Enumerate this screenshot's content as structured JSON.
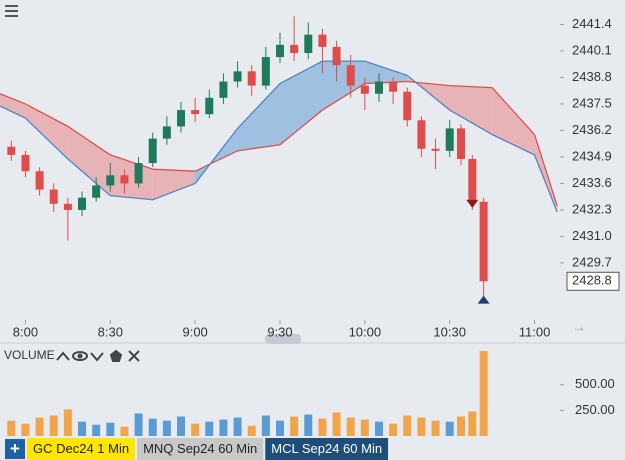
{
  "chart_data": {
    "type": "candlestick",
    "xlim": [
      471,
      669
    ],
    "xticks": [
      {
        "value": 480,
        "label": "8:00"
      },
      {
        "value": 510,
        "label": "8:30"
      },
      {
        "value": 540,
        "label": "9:00"
      },
      {
        "value": 570,
        "label": "9:30"
      },
      {
        "value": 600,
        "label": "10:00"
      },
      {
        "value": 630,
        "label": "10:30"
      },
      {
        "value": 660,
        "label": "11:00"
      }
    ],
    "ylim": [
      2426.9,
      2442.6
    ],
    "yticks": [
      2441.4,
      2440.1,
      2438.8,
      2437.5,
      2436.2,
      2434.9,
      2433.6,
      2432.3,
      {
        "value": 2431,
        "label": "2431.0"
      },
      2429.7
    ],
    "last_price": 2428.8,
    "up_color": "#1f7a5a",
    "down_color": "#e04b4b",
    "candles": [
      {
        "t": 475,
        "o": 2435.4,
        "h": 2435.7,
        "l": 2434.7,
        "c": 2435.0,
        "v": 150
      },
      {
        "t": 480,
        "o": 2435.0,
        "h": 2435.2,
        "l": 2433.9,
        "c": 2434.2,
        "v": 120
      },
      {
        "t": 485,
        "o": 2434.2,
        "h": 2434.4,
        "l": 2433.0,
        "c": 2433.3,
        "v": 180
      },
      {
        "t": 490,
        "o": 2433.3,
        "h": 2433.6,
        "l": 2432.2,
        "c": 2432.6,
        "v": 200
      },
      {
        "t": 495,
        "o": 2432.6,
        "h": 2432.9,
        "l": 2430.8,
        "c": 2432.3,
        "v": 260
      },
      {
        "t": 500,
        "o": 2432.3,
        "h": 2433.2,
        "l": 2432.0,
        "c": 2432.9,
        "v": 140
      },
      {
        "t": 505,
        "o": 2432.9,
        "h": 2433.9,
        "l": 2432.7,
        "c": 2433.5,
        "v": 110
      },
      {
        "t": 510,
        "o": 2433.5,
        "h": 2434.6,
        "l": 2433.2,
        "c": 2434.0,
        "v": 130
      },
      {
        "t": 515,
        "o": 2434.0,
        "h": 2434.3,
        "l": 2433.1,
        "c": 2433.6,
        "v": 90
      },
      {
        "t": 520,
        "o": 2433.6,
        "h": 2434.9,
        "l": 2433.4,
        "c": 2434.6,
        "v": 220
      },
      {
        "t": 525,
        "o": 2434.6,
        "h": 2436.1,
        "l": 2434.4,
        "c": 2435.8,
        "v": 170
      },
      {
        "t": 530,
        "o": 2435.8,
        "h": 2436.9,
        "l": 2435.5,
        "c": 2436.4,
        "v": 150
      },
      {
        "t": 535,
        "o": 2436.4,
        "h": 2437.6,
        "l": 2436.1,
        "c": 2437.2,
        "v": 190
      },
      {
        "t": 540,
        "o": 2437.2,
        "h": 2437.8,
        "l": 2436.6,
        "c": 2437.0,
        "v": 120
      },
      {
        "t": 545,
        "o": 2437.0,
        "h": 2438.2,
        "l": 2436.8,
        "c": 2437.8,
        "v": 140
      },
      {
        "t": 550,
        "o": 2437.8,
        "h": 2439.0,
        "l": 2437.5,
        "c": 2438.6,
        "v": 160
      },
      {
        "t": 555,
        "o": 2438.6,
        "h": 2439.6,
        "l": 2438.3,
        "c": 2439.1,
        "v": 180
      },
      {
        "t": 560,
        "o": 2439.1,
        "h": 2439.4,
        "l": 2437.9,
        "c": 2438.4,
        "v": 100
      },
      {
        "t": 565,
        "o": 2438.4,
        "h": 2440.3,
        "l": 2438.2,
        "c": 2439.8,
        "v": 200
      },
      {
        "t": 570,
        "o": 2439.8,
        "h": 2441.0,
        "l": 2439.5,
        "c": 2440.4,
        "v": 150
      },
      {
        "t": 575,
        "o": 2440.4,
        "h": 2441.8,
        "l": 2439.6,
        "c": 2440.0,
        "v": 190
      },
      {
        "t": 580,
        "o": 2440.0,
        "h": 2441.5,
        "l": 2439.7,
        "c": 2440.9,
        "v": 210
      },
      {
        "t": 585,
        "o": 2440.9,
        "h": 2441.2,
        "l": 2439.0,
        "c": 2440.3,
        "v": 170
      },
      {
        "t": 590,
        "o": 2440.3,
        "h": 2440.6,
        "l": 2438.6,
        "c": 2439.4,
        "v": 230
      },
      {
        "t": 595,
        "o": 2439.4,
        "h": 2439.9,
        "l": 2437.8,
        "c": 2438.4,
        "v": 180
      },
      {
        "t": 600,
        "o": 2438.4,
        "h": 2438.8,
        "l": 2437.2,
        "c": 2438.0,
        "v": 160
      },
      {
        "t": 605,
        "o": 2438.0,
        "h": 2439.0,
        "l": 2437.6,
        "c": 2438.6,
        "v": 140
      },
      {
        "t": 610,
        "o": 2438.6,
        "h": 2438.8,
        "l": 2437.5,
        "c": 2438.1,
        "v": 120
      },
      {
        "t": 615,
        "o": 2438.1,
        "h": 2438.3,
        "l": 2436.4,
        "c": 2436.7,
        "v": 200
      },
      {
        "t": 620,
        "o": 2436.7,
        "h": 2436.9,
        "l": 2434.9,
        "c": 2435.3,
        "v": 180
      },
      {
        "t": 625,
        "o": 2435.3,
        "h": 2435.8,
        "l": 2434.3,
        "c": 2435.2,
        "v": 150
      },
      {
        "t": 630,
        "o": 2435.2,
        "h": 2436.7,
        "l": 2434.9,
        "c": 2436.3,
        "v": 140
      },
      {
        "t": 634,
        "o": 2436.3,
        "h": 2436.5,
        "l": 2434.5,
        "c": 2434.8,
        "v": 190
      },
      {
        "t": 638,
        "o": 2434.8,
        "h": 2435.0,
        "l": 2432.3,
        "c": 2432.7,
        "v": 240
      },
      {
        "t": 642,
        "o": 2432.7,
        "h": 2432.9,
        "l": 2427.8,
        "c": 2428.8,
        "v": 830
      }
    ],
    "cloud": {
      "x": [
        471,
        480,
        495,
        510,
        525,
        540,
        555,
        570,
        585,
        600,
        615,
        630,
        645,
        660,
        668
      ],
      "span_a": {
        "color": "#d9534f",
        "fill": "#e8a5a8",
        "values": [
          2438.0,
          2437.5,
          2436.4,
          2435.0,
          2434.3,
          2434.2,
          2435.2,
          2435.5,
          2437.2,
          2438.5,
          2438.6,
          2438.4,
          2438.3,
          2436.0,
          2432.5
        ]
      },
      "span_b": {
        "color": "#4f86c6",
        "fill": "#8fb5dd",
        "values": [
          2437.4,
          2436.8,
          2434.8,
          2433.0,
          2432.8,
          2433.6,
          2436.3,
          2438.5,
          2439.6,
          2439.6,
          2438.9,
          2437.2,
          2436.0,
          2435.0,
          2432.2
        ]
      }
    },
    "signals": [
      {
        "t": 638,
        "price": 2432.6,
        "direction": "down",
        "color": "#8b1a1a"
      },
      {
        "t": 642,
        "price": 2427.9,
        "direction": "up",
        "color": "#1c3f6e"
      }
    ],
    "volume": {
      "title": "VOLUME",
      "ylim": [
        0,
        840
      ],
      "yticks": [
        {
          "value": 500,
          "label": "500.00"
        },
        {
          "value": 250,
          "label": "250.00"
        }
      ],
      "up_color": "#5b9bd5",
      "down_color": "#f2a44a"
    }
  },
  "tabs": [
    {
      "label": "GC Dec24 1 Min",
      "bg": "#ffe600",
      "fg": "#222"
    },
    {
      "label": "MNQ Sep24 60 Min",
      "bg": "#c8c8c8",
      "fg": "#222"
    },
    {
      "label": "MCL Sep24 60 Min",
      "bg": "#1f4e79",
      "fg": "#ffffff"
    }
  ]
}
